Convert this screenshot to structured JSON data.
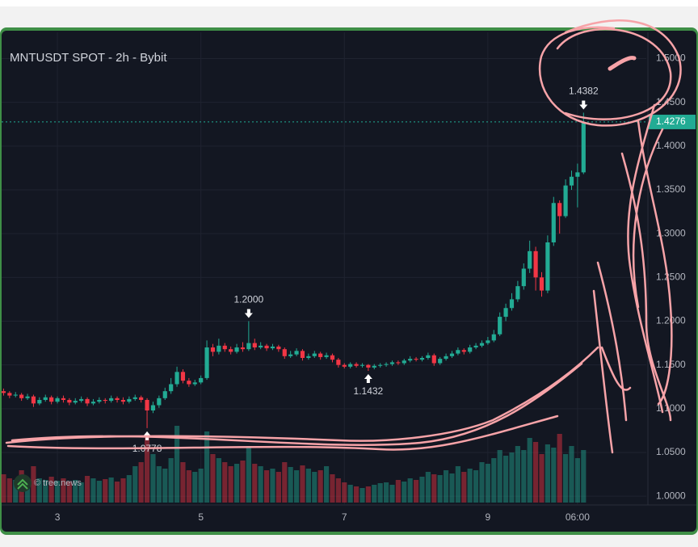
{
  "chart_data": {
    "type": "candlestick",
    "title": "MNTUSDT SPOT - 2h - Bybit",
    "watermark": "© tree.news",
    "up_color": "#22ab94",
    "down_color": "#f23645",
    "grid": true,
    "ylim": [
      0.99,
      1.53
    ],
    "yticks": [
      {
        "value": 1.0,
        "label": "1.0000"
      },
      {
        "value": 1.05,
        "label": "1.0500"
      },
      {
        "value": 1.1,
        "label": "1.1000"
      },
      {
        "value": 1.15,
        "label": "1.1500"
      },
      {
        "value": 1.2,
        "label": "1.2000"
      },
      {
        "value": 1.25,
        "label": "1.2500"
      },
      {
        "value": 1.3,
        "label": "1.3000"
      },
      {
        "value": 1.35,
        "label": "1.3500"
      },
      {
        "value": 1.4,
        "label": "1.4000"
      },
      {
        "value": 1.45,
        "label": "1.4500"
      },
      {
        "value": 1.5,
        "label": "1.5000"
      }
    ],
    "xlim": [
      -0.6,
      107.5
    ],
    "xticks": [
      {
        "value": 9,
        "label": "3"
      },
      {
        "value": 33,
        "label": "5"
      },
      {
        "value": 57,
        "label": "7"
      },
      {
        "value": 81,
        "label": "9"
      },
      {
        "value": 96,
        "label": "06:00"
      }
    ],
    "open": [
      1.12,
      1.118,
      1.115,
      1.116,
      1.112,
      1.114,
      1.106,
      1.11,
      1.113,
      1.108,
      1.112,
      1.11,
      1.107,
      1.109,
      1.111,
      1.106,
      1.108,
      1.11,
      1.109,
      1.112,
      1.11,
      1.108,
      1.111,
      1.113,
      1.11,
      1.098,
      1.104,
      1.112,
      1.12,
      1.128,
      1.142,
      1.132,
      1.128,
      1.13,
      1.135,
      1.17,
      1.165,
      1.172,
      1.168,
      1.165,
      1.17,
      1.168,
      1.175,
      1.17,
      1.172,
      1.169,
      1.171,
      1.168,
      1.16,
      1.162,
      1.166,
      1.158,
      1.16,
      1.163,
      1.159,
      1.161,
      1.156,
      1.15,
      1.148,
      1.151,
      1.149,
      1.15,
      1.147,
      1.149,
      1.15,
      1.151,
      1.153,
      1.152,
      1.155,
      1.157,
      1.156,
      1.158,
      1.161,
      1.152,
      1.157,
      1.16,
      1.163,
      1.167,
      1.165,
      1.17,
      1.172,
      1.175,
      1.178,
      1.185,
      1.205,
      1.215,
      1.225,
      1.24,
      1.26,
      1.28,
      1.25,
      1.235,
      1.29,
      1.335,
      1.32,
      1.355,
      1.365,
      1.37
    ],
    "high": [
      1.123,
      1.12,
      1.119,
      1.118,
      1.117,
      1.116,
      1.113,
      1.116,
      1.115,
      1.114,
      1.115,
      1.112,
      1.112,
      1.114,
      1.113,
      1.111,
      1.113,
      1.112,
      1.115,
      1.114,
      1.113,
      1.114,
      1.116,
      1.115,
      1.112,
      1.108,
      1.115,
      1.124,
      1.135,
      1.148,
      1.145,
      1.135,
      1.133,
      1.138,
      1.178,
      1.174,
      1.18,
      1.175,
      1.171,
      1.174,
      1.176,
      1.2,
      1.18,
      1.176,
      1.174,
      1.174,
      1.173,
      1.17,
      1.166,
      1.169,
      1.168,
      1.163,
      1.166,
      1.165,
      1.164,
      1.163,
      1.158,
      1.152,
      1.153,
      1.153,
      1.152,
      1.151,
      1.151,
      1.152,
      1.153,
      1.155,
      1.155,
      1.157,
      1.16,
      1.159,
      1.16,
      1.164,
      1.163,
      1.159,
      1.163,
      1.166,
      1.17,
      1.169,
      1.173,
      1.175,
      1.178,
      1.182,
      1.19,
      1.21,
      1.22,
      1.232,
      1.246,
      1.266,
      1.292,
      1.285,
      1.256,
      1.298,
      1.342,
      1.338,
      1.362,
      1.372,
      1.38,
      1.4382
    ],
    "low": [
      1.115,
      1.112,
      1.113,
      1.109,
      1.11,
      1.102,
      1.104,
      1.108,
      1.105,
      1.106,
      1.107,
      1.104,
      1.105,
      1.107,
      1.103,
      1.104,
      1.106,
      1.106,
      1.107,
      1.107,
      1.105,
      1.106,
      1.109,
      1.107,
      1.0778,
      1.095,
      1.101,
      1.11,
      1.117,
      1.125,
      1.129,
      1.125,
      1.126,
      1.128,
      1.133,
      1.16,
      1.162,
      1.165,
      1.162,
      1.163,
      1.165,
      1.166,
      1.167,
      1.168,
      1.166,
      1.167,
      1.165,
      1.157,
      1.158,
      1.16,
      1.155,
      1.156,
      1.158,
      1.156,
      1.157,
      1.153,
      1.147,
      1.146,
      1.146,
      1.147,
      1.147,
      1.1432,
      1.145,
      1.147,
      1.148,
      1.149,
      1.15,
      1.15,
      1.153,
      1.154,
      1.154,
      1.156,
      1.149,
      1.15,
      1.155,
      1.158,
      1.161,
      1.162,
      1.163,
      1.168,
      1.17,
      1.173,
      1.176,
      1.183,
      1.2,
      1.212,
      1.222,
      1.236,
      1.255,
      1.235,
      1.228,
      1.232,
      1.286,
      1.3,
      1.318,
      1.35,
      1.33,
      1.368
    ],
    "close": [
      1.118,
      1.115,
      1.116,
      1.112,
      1.114,
      1.106,
      1.11,
      1.113,
      1.108,
      1.112,
      1.11,
      1.107,
      1.109,
      1.111,
      1.106,
      1.108,
      1.11,
      1.109,
      1.112,
      1.11,
      1.108,
      1.111,
      1.113,
      1.11,
      1.098,
      1.104,
      1.112,
      1.12,
      1.128,
      1.142,
      1.132,
      1.128,
      1.13,
      1.135,
      1.17,
      1.165,
      1.172,
      1.168,
      1.165,
      1.17,
      1.168,
      1.175,
      1.17,
      1.172,
      1.169,
      1.171,
      1.168,
      1.16,
      1.162,
      1.166,
      1.158,
      1.16,
      1.163,
      1.159,
      1.161,
      1.156,
      1.15,
      1.148,
      1.151,
      1.149,
      1.15,
      1.147,
      1.149,
      1.15,
      1.151,
      1.153,
      1.152,
      1.155,
      1.157,
      1.156,
      1.158,
      1.161,
      1.152,
      1.157,
      1.16,
      1.163,
      1.167,
      1.165,
      1.17,
      1.172,
      1.175,
      1.178,
      1.185,
      1.205,
      1.215,
      1.225,
      1.24,
      1.26,
      1.28,
      1.25,
      1.235,
      1.29,
      1.335,
      1.32,
      1.355,
      1.365,
      1.37,
      1.4276
    ],
    "volume": [
      35,
      30,
      28,
      40,
      25,
      45,
      30,
      28,
      32,
      27,
      30,
      26,
      28,
      25,
      33,
      30,
      27,
      29,
      31,
      26,
      30,
      34,
      45,
      50,
      80,
      60,
      45,
      42,
      55,
      95,
      50,
      40,
      38,
      42,
      88,
      60,
      55,
      50,
      45,
      48,
      52,
      70,
      48,
      45,
      40,
      42,
      38,
      50,
      44,
      40,
      46,
      42,
      38,
      40,
      45,
      35,
      30,
      25,
      22,
      20,
      18,
      20,
      22,
      24,
      25,
      22,
      28,
      26,
      30,
      28,
      32,
      38,
      35,
      34,
      40,
      36,
      45,
      38,
      42,
      40,
      50,
      48,
      55,
      65,
      58,
      62,
      70,
      65,
      80,
      75,
      60,
      72,
      68,
      85,
      60,
      70,
      55,
      65
    ],
    "volume_lim": [
      0,
      100
    ],
    "annotations": [
      {
        "x": 41,
        "value": 1.2,
        "label": "1.2000"
      },
      {
        "x": 61,
        "value": 1.1432,
        "label": "1.1432"
      },
      {
        "x": 24,
        "value": 1.0778,
        "label": "1.0778"
      },
      {
        "x": 97,
        "value": 1.4382,
        "label": "1.4382"
      }
    ],
    "last_price": {
      "value": 1.4276,
      "label": "1.4276"
    }
  }
}
